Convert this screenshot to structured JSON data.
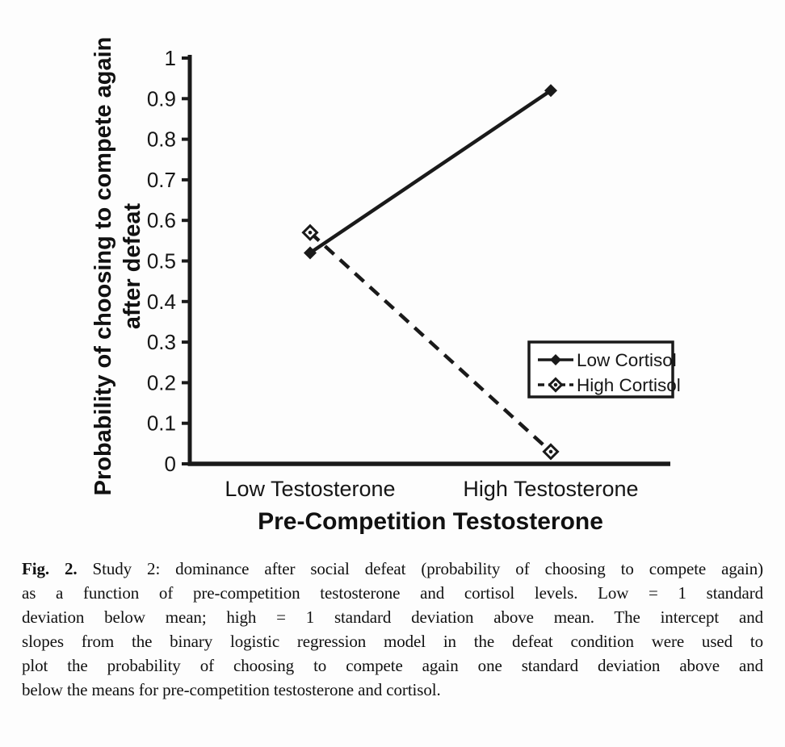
{
  "chart_data": {
    "type": "line",
    "title": "",
    "categories": [
      "Low Testosterone",
      "High Testosterone"
    ],
    "series": [
      {
        "name": "Low Cortisol",
        "values": [
          0.52,
          0.92
        ],
        "line_style": "solid",
        "marker": "filled-diamond"
      },
      {
        "name": "High Cortisol",
        "values": [
          0.57,
          0.03
        ],
        "line_style": "dashed",
        "marker": "open-diamond"
      }
    ],
    "xlabel": "Pre-Competition Testosterone",
    "ylabel": "Probability of choosing to compete again after defeat",
    "ylabel_lines": [
      "Probability of choosing to compete again",
      "after defeat"
    ],
    "ylim": [
      0,
      1
    ],
    "ytick_step": 0.1,
    "ytick_labels": [
      "0",
      "0.1",
      "0.2",
      "0.3",
      "0.4",
      "0.5",
      "0.6",
      "0.7",
      "0.8",
      "0.9",
      "1"
    ],
    "legend": {
      "position": "middle-right"
    },
    "grid": false,
    "axis_color": "#1a1a1a",
    "text_color": "#111111",
    "background_color": "#fdfdfd"
  },
  "figure_caption": {
    "lines": [
      {
        "bold": "Fig. 2.",
        "text": " Study 2: dominance after social defeat (probability of choosing to compete again)"
      },
      {
        "bold": "",
        "text": "as a function of pre-competition testosterone and cortisol levels. Low = 1 standard"
      },
      {
        "bold": "",
        "text": "deviation below mean; high = 1 standard deviation above mean. The intercept and"
      },
      {
        "bold": "",
        "text": "slopes from the binary logistic regression model in the defeat condition were used to"
      },
      {
        "bold": "",
        "text": "plot the probability of choosing to compete again one standard deviation above and"
      },
      {
        "bold": "",
        "text": "below the means for pre-competition testosterone and cortisol."
      }
    ]
  }
}
